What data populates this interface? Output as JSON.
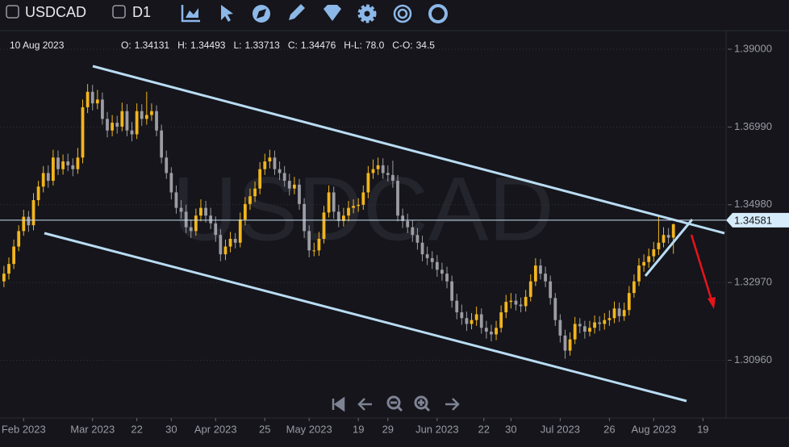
{
  "toolbar": {
    "symbol": "USDCAD",
    "timeframe": "D1"
  },
  "chart_data": {
    "type": "candlestick",
    "watermark": "USDCAD",
    "date_label": "10 Aug 2023",
    "info": [
      {
        "key": "O:",
        "value": 1.34131
      },
      {
        "key": "H:",
        "value": 1.34493
      },
      {
        "key": "L:",
        "value": 1.33713
      },
      {
        "key": "C:",
        "value": 1.34476
      },
      {
        "key": "H-L:",
        "value": "78.0"
      },
      {
        "key": "C-O:",
        "value": "34.5"
      }
    ],
    "up_color": "#f2b51c",
    "down_color": "#9c9ca4",
    "last_price": 1.34581,
    "grid": true,
    "xlim": [
      -0.8,
      146.7
    ],
    "ylim": [
      1.2947,
      1.3948
    ],
    "yticks": [
      {
        "value": 1.39,
        "label": "1.39000"
      },
      {
        "value": 1.3699,
        "label": "1.36990"
      },
      {
        "value": 1.3498,
        "label": "1.34980"
      },
      {
        "value": 1.3297,
        "label": "1.32970"
      },
      {
        "value": 1.3096,
        "label": "1.30960"
      }
    ],
    "xticks": [
      {
        "value": 4,
        "label": "Feb 2023"
      },
      {
        "value": 18,
        "label": "Mar 2023"
      },
      {
        "value": 27,
        "label": "22"
      },
      {
        "value": 34,
        "label": "30"
      },
      {
        "value": 43,
        "label": "Apr 2023"
      },
      {
        "value": 53,
        "label": "25"
      },
      {
        "value": 62,
        "label": "May 2023"
      },
      {
        "value": 72,
        "label": "19"
      },
      {
        "value": 78,
        "label": "29"
      },
      {
        "value": 88,
        "label": "Jun 2023"
      },
      {
        "value": 97.5,
        "label": "22"
      },
      {
        "value": 103,
        "label": "30"
      },
      {
        "value": 113,
        "label": "Jul 2023"
      },
      {
        "value": 123,
        "label": "26"
      },
      {
        "value": 132,
        "label": "Aug 2023"
      },
      {
        "value": 142,
        "label": "19"
      }
    ],
    "ohlc": [
      [
        1.33,
        1.334,
        1.3285,
        1.332
      ],
      [
        1.332,
        1.3362,
        1.3305,
        1.3345
      ],
      [
        1.3345,
        1.3408,
        1.3332,
        1.339
      ],
      [
        1.339,
        1.3445,
        1.3378,
        1.343
      ],
      [
        1.343,
        1.3485,
        1.3418,
        1.3467
      ],
      [
        1.3467,
        1.3482,
        1.3428,
        1.3445
      ],
      [
        1.3445,
        1.3528,
        1.3432,
        1.351
      ],
      [
        1.351,
        1.356,
        1.3495,
        1.3545
      ],
      [
        1.3545,
        1.3598,
        1.353,
        1.358
      ],
      [
        1.358,
        1.36,
        1.3542,
        1.356
      ],
      [
        1.356,
        1.364,
        1.3548,
        1.362
      ],
      [
        1.362,
        1.3638,
        1.3575,
        1.359
      ],
      [
        1.359,
        1.3628,
        1.3576,
        1.361
      ],
      [
        1.361,
        1.363,
        1.3585,
        1.36
      ],
      [
        1.36,
        1.3618,
        1.3572,
        1.359
      ],
      [
        1.359,
        1.3645,
        1.3578,
        1.362
      ],
      [
        1.362,
        1.377,
        1.3605,
        1.375
      ],
      [
        1.375,
        1.381,
        1.3735,
        1.379
      ],
      [
        1.379,
        1.3808,
        1.3742,
        1.376
      ],
      [
        1.376,
        1.3795,
        1.3745,
        1.377
      ],
      [
        1.377,
        1.3788,
        1.3705,
        1.372
      ],
      [
        1.372,
        1.3738,
        1.3672,
        1.369
      ],
      [
        1.369,
        1.373,
        1.3675,
        1.371
      ],
      [
        1.371,
        1.3728,
        1.3682,
        1.37
      ],
      [
        1.37,
        1.3762,
        1.3688,
        1.374
      ],
      [
        1.374,
        1.3758,
        1.3675,
        1.369
      ],
      [
        1.369,
        1.3712,
        1.3662,
        1.368
      ],
      [
        1.368,
        1.376,
        1.3668,
        1.374
      ],
      [
        1.374,
        1.3758,
        1.3702,
        1.372
      ],
      [
        1.372,
        1.379,
        1.3705,
        1.373
      ],
      [
        1.373,
        1.376,
        1.3715,
        1.374
      ],
      [
        1.374,
        1.3755,
        1.3675,
        1.369
      ],
      [
        1.369,
        1.3705,
        1.3605,
        1.362
      ],
      [
        1.362,
        1.3638,
        1.3565,
        1.358
      ],
      [
        1.358,
        1.3595,
        1.3512,
        1.353
      ],
      [
        1.353,
        1.3548,
        1.3475,
        1.349
      ],
      [
        1.349,
        1.351,
        1.3462,
        1.348
      ],
      [
        1.348,
        1.3498,
        1.3425,
        1.344
      ],
      [
        1.344,
        1.346,
        1.3412,
        1.343
      ],
      [
        1.343,
        1.3488,
        1.3418,
        1.347
      ],
      [
        1.347,
        1.3512,
        1.3455,
        1.349
      ],
      [
        1.349,
        1.3508,
        1.3452,
        1.347
      ],
      [
        1.347,
        1.349,
        1.3435,
        1.345
      ],
      [
        1.345,
        1.3468,
        1.3402,
        1.342
      ],
      [
        1.342,
        1.3435,
        1.3352,
        1.337
      ],
      [
        1.337,
        1.3408,
        1.3355,
        1.339
      ],
      [
        1.339,
        1.3428,
        1.3375,
        1.341
      ],
      [
        1.341,
        1.3425,
        1.3385,
        1.34
      ],
      [
        1.34,
        1.3478,
        1.3388,
        1.346
      ],
      [
        1.346,
        1.3518,
        1.3445,
        1.35
      ],
      [
        1.35,
        1.354,
        1.3485,
        1.352
      ],
      [
        1.352,
        1.3558,
        1.3505,
        1.354
      ],
      [
        1.354,
        1.3608,
        1.3525,
        1.359
      ],
      [
        1.359,
        1.363,
        1.3575,
        1.361
      ],
      [
        1.361,
        1.364,
        1.3592,
        1.362
      ],
      [
        1.362,
        1.3638,
        1.3575,
        1.359
      ],
      [
        1.359,
        1.361,
        1.3562,
        1.358
      ],
      [
        1.358,
        1.3598,
        1.3545,
        1.356
      ],
      [
        1.356,
        1.3578,
        1.3522,
        1.354
      ],
      [
        1.354,
        1.357,
        1.3525,
        1.355
      ],
      [
        1.355,
        1.3565,
        1.3485,
        1.35
      ],
      [
        1.35,
        1.3515,
        1.3412,
        1.343
      ],
      [
        1.343,
        1.3445,
        1.3362,
        1.338
      ],
      [
        1.338,
        1.34,
        1.3365,
        1.338
      ],
      [
        1.338,
        1.3428,
        1.3366,
        1.341
      ],
      [
        1.341,
        1.3495,
        1.3398,
        1.3478
      ],
      [
        1.3478,
        1.3548,
        1.3465,
        1.353
      ],
      [
        1.353,
        1.3545,
        1.3462,
        1.348
      ],
      [
        1.348,
        1.3498,
        1.344,
        1.3456
      ],
      [
        1.3456,
        1.349,
        1.3442,
        1.347
      ],
      [
        1.347,
        1.3508,
        1.3455,
        1.349
      ],
      [
        1.349,
        1.3512,
        1.3476,
        1.3495
      ],
      [
        1.3495,
        1.3515,
        1.348,
        1.3498
      ],
      [
        1.3498,
        1.3548,
        1.3485,
        1.353
      ],
      [
        1.353,
        1.3598,
        1.3515,
        1.358
      ],
      [
        1.358,
        1.3615,
        1.3565,
        1.359
      ],
      [
        1.359,
        1.362,
        1.3575,
        1.36
      ],
      [
        1.36,
        1.3618,
        1.3565,
        1.358
      ],
      [
        1.358,
        1.36,
        1.3558,
        1.3575
      ],
      [
        1.3575,
        1.3612,
        1.3542,
        1.356
      ],
      [
        1.356,
        1.3575,
        1.3455,
        1.347
      ],
      [
        1.347,
        1.3488,
        1.3438,
        1.3456
      ],
      [
        1.3456,
        1.3475,
        1.3425,
        1.344
      ],
      [
        1.344,
        1.3458,
        1.3402,
        1.342
      ],
      [
        1.342,
        1.3438,
        1.3382,
        1.34
      ],
      [
        1.34,
        1.3418,
        1.3352,
        1.337
      ],
      [
        1.337,
        1.339,
        1.3342,
        1.336
      ],
      [
        1.336,
        1.3378,
        1.3332,
        1.335
      ],
      [
        1.335,
        1.3368,
        1.3312,
        1.333
      ],
      [
        1.333,
        1.3348,
        1.3302,
        1.332
      ],
      [
        1.332,
        1.3338,
        1.3282,
        1.33
      ],
      [
        1.33,
        1.3315,
        1.3232,
        1.325
      ],
      [
        1.325,
        1.3268,
        1.3202,
        1.322
      ],
      [
        1.322,
        1.324,
        1.3188,
        1.3205
      ],
      [
        1.3205,
        1.3222,
        1.3172,
        1.319
      ],
      [
        1.319,
        1.3218,
        1.3176,
        1.32
      ],
      [
        1.32,
        1.3235,
        1.3185,
        1.3215
      ],
      [
        1.3215,
        1.323,
        1.3165,
        1.318
      ],
      [
        1.318,
        1.3198,
        1.3152,
        1.317
      ],
      [
        1.317,
        1.3188,
        1.3145,
        1.3163
      ],
      [
        1.3163,
        1.3198,
        1.3148,
        1.318
      ],
      [
        1.318,
        1.3238,
        1.3168,
        1.322
      ],
      [
        1.322,
        1.3265,
        1.3205,
        1.3247
      ],
      [
        1.3247,
        1.327,
        1.323,
        1.325
      ],
      [
        1.325,
        1.3268,
        1.3225,
        1.324
      ],
      [
        1.324,
        1.3258,
        1.322,
        1.3236
      ],
      [
        1.3236,
        1.3278,
        1.3222,
        1.326
      ],
      [
        1.326,
        1.3318,
        1.3248,
        1.33
      ],
      [
        1.33,
        1.336,
        1.3288,
        1.3341
      ],
      [
        1.3341,
        1.3358,
        1.3305,
        1.332
      ],
      [
        1.332,
        1.3338,
        1.3285,
        1.33
      ],
      [
        1.33,
        1.3315,
        1.324,
        1.3257
      ],
      [
        1.3257,
        1.327,
        1.3185,
        1.32
      ],
      [
        1.32,
        1.3215,
        1.3142,
        1.316
      ],
      [
        1.316,
        1.3175,
        1.31,
        1.3121
      ],
      [
        1.3121,
        1.3168,
        1.3108,
        1.315
      ],
      [
        1.315,
        1.3208,
        1.3138,
        1.319
      ],
      [
        1.319,
        1.3205,
        1.3166,
        1.3184
      ],
      [
        1.3184,
        1.3198,
        1.3152,
        1.317
      ],
      [
        1.317,
        1.3198,
        1.3158,
        1.318
      ],
      [
        1.318,
        1.3212,
        1.3165,
        1.3194
      ],
      [
        1.3194,
        1.321,
        1.3172,
        1.319
      ],
      [
        1.319,
        1.3218,
        1.3175,
        1.32
      ],
      [
        1.32,
        1.3225,
        1.3185,
        1.3205
      ],
      [
        1.3205,
        1.3248,
        1.3192,
        1.323
      ],
      [
        1.323,
        1.3245,
        1.3195,
        1.321
      ],
      [
        1.321,
        1.3245,
        1.3198,
        1.3226
      ],
      [
        1.3226,
        1.3288,
        1.3212,
        1.327
      ],
      [
        1.327,
        1.3318,
        1.3258,
        1.33
      ],
      [
        1.33,
        1.336,
        1.3288,
        1.3341
      ],
      [
        1.3341,
        1.337,
        1.3325,
        1.335
      ],
      [
        1.335,
        1.3385,
        1.3335,
        1.3365
      ],
      [
        1.3365,
        1.3402,
        1.335,
        1.3383
      ],
      [
        1.3383,
        1.347,
        1.3368,
        1.34
      ],
      [
        1.34,
        1.344,
        1.3388,
        1.342
      ],
      [
        1.342,
        1.3438,
        1.3398,
        1.3413
      ],
      [
        1.34131,
        1.34493,
        1.33713,
        1.34476
      ]
    ]
  }
}
